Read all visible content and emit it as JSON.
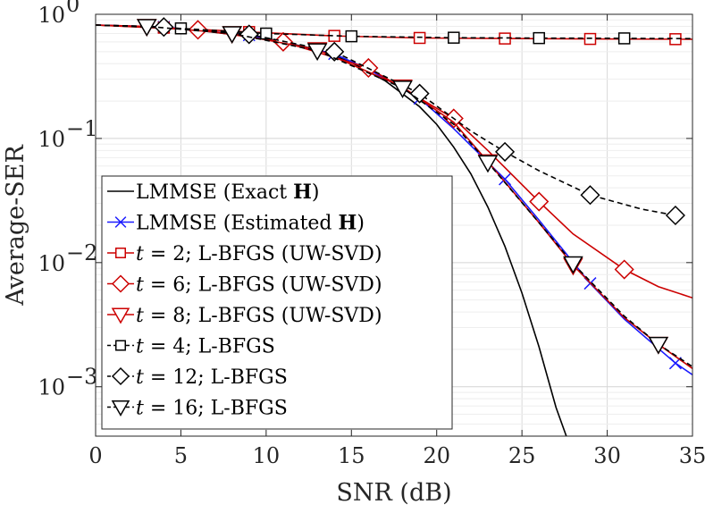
{
  "chart_data": {
    "type": "line",
    "title": "",
    "xlabel": "SNR (dB)",
    "ylabel": "Average-SER",
    "xlim": [
      0,
      35
    ],
    "ylim": [
      0.0004,
      1
    ],
    "yscale": "log",
    "grid": true,
    "legend_position": "bottom-left",
    "x_ticks": [
      0,
      5,
      10,
      15,
      20,
      25,
      30,
      35
    ],
    "y_ticks": [
      {
        "value": 1,
        "base": "10",
        "exp": "0"
      },
      {
        "value": 0.1,
        "base": "10",
        "exp": "−1"
      },
      {
        "value": 0.01,
        "base": "10",
        "exp": "−2"
      },
      {
        "value": 0.001,
        "base": "10",
        "exp": "−3"
      }
    ],
    "series": [
      {
        "name": "LMMSE (Exact H)",
        "legend_parts": [
          "LMMSE (Exact ",
          "H",
          ")"
        ],
        "color": "#000000",
        "dash": "",
        "marker": "none",
        "x": [
          0,
          5,
          10,
          13,
          15,
          17,
          19,
          20,
          21,
          22,
          23,
          24,
          25,
          26,
          27,
          27.6
        ],
        "y": [
          0.82,
          0.77,
          0.64,
          0.52,
          0.41,
          0.29,
          0.18,
          0.13,
          0.085,
          0.052,
          0.028,
          0.0135,
          0.0057,
          0.0021,
          0.00068,
          0.0004
        ],
        "marker_x": []
      },
      {
        "name": "LMMSE (Estimated H)",
        "legend_parts": [
          "LMMSE (Estimated ",
          "H",
          ")"
        ],
        "color": "#1a1aff",
        "dash": "",
        "marker": "x",
        "x": [
          0,
          4,
          9,
          14,
          16,
          19,
          21,
          24,
          26,
          29,
          31,
          34,
          35
        ],
        "y": [
          0.82,
          0.79,
          0.68,
          0.48,
          0.36,
          0.21,
          0.12,
          0.047,
          0.022,
          0.0068,
          0.0035,
          0.00155,
          0.00125
        ],
        "marker_x": [
          4,
          9,
          14,
          19,
          24,
          29,
          34
        ]
      },
      {
        "name": "t = 2; L-BFGS (UW-SVD)",
        "legend_parts": [
          "t",
          " = 2; L-BFGS (UW-SVD)"
        ],
        "color": "#cc0000",
        "dash": "",
        "marker": "square",
        "x": [
          0,
          4,
          9,
          14,
          19,
          24,
          29,
          35
        ],
        "y": [
          0.82,
          0.78,
          0.72,
          0.67,
          0.645,
          0.638,
          0.633,
          0.63
        ],
        "marker_x": [
          4,
          9,
          14,
          19,
          24,
          29,
          34
        ]
      },
      {
        "name": "t = 6; L-BFGS (UW-SVD)",
        "legend_parts": [
          "t",
          " = 6; L-BFGS (UW-SVD)"
        ],
        "color": "#cc0000",
        "dash": "",
        "marker": "diamond",
        "x": [
          0,
          6,
          11,
          16,
          21,
          23,
          26,
          28,
          31,
          33,
          35
        ],
        "y": [
          0.82,
          0.75,
          0.6,
          0.37,
          0.145,
          0.08,
          0.031,
          0.017,
          0.0088,
          0.0064,
          0.0052
        ],
        "marker_x": [
          6,
          11,
          16,
          21,
          26,
          31
        ]
      },
      {
        "name": "t = 8; L-BFGS (UW-SVD)",
        "legend_parts": [
          "t",
          " = 8; L-BFGS (UW-SVD)"
        ],
        "color": "#cc0000",
        "dash": "",
        "marker": "triangle",
        "x": [
          0,
          3,
          8,
          13,
          18,
          21,
          23,
          26,
          28,
          31,
          33,
          35
        ],
        "y": [
          0.82,
          0.8,
          0.7,
          0.52,
          0.26,
          0.135,
          0.065,
          0.021,
          0.0095,
          0.0036,
          0.0022,
          0.0014
        ],
        "marker_x": [
          3,
          8,
          13,
          18,
          23,
          28,
          33
        ]
      },
      {
        "name": "t = 4; L-BFGS",
        "legend_parts": [
          "t",
          " = 4; L-BFGS"
        ],
        "color": "#000000",
        "dash": "6,4",
        "marker": "square",
        "x": [
          0,
          5,
          10,
          15,
          21,
          26,
          31,
          35
        ],
        "y": [
          0.82,
          0.77,
          0.7,
          0.665,
          0.648,
          0.643,
          0.64,
          0.637
        ],
        "marker_x": [
          5,
          10,
          15,
          21,
          26,
          31
        ]
      },
      {
        "name": "t = 12; L-BFGS",
        "legend_parts": [
          "t",
          " = 12; L-BFGS"
        ],
        "color": "#000000",
        "dash": "6,4",
        "marker": "diamond",
        "x": [
          0,
          4,
          9,
          14,
          19,
          22,
          24,
          26,
          29,
          32,
          34
        ],
        "y": [
          0.82,
          0.79,
          0.69,
          0.5,
          0.23,
          0.115,
          0.078,
          0.055,
          0.035,
          0.027,
          0.024
        ],
        "marker_x": [
          4,
          9,
          14,
          19,
          24,
          29,
          34
        ]
      },
      {
        "name": "t = 16; L-BFGS",
        "legend_parts": [
          "t",
          " = 16; L-BFGS"
        ],
        "color": "#000000",
        "dash": "6,4",
        "marker": "triangle",
        "x": [
          0,
          3,
          8,
          13,
          18,
          21,
          23,
          26,
          28,
          31,
          33,
          35
        ],
        "y": [
          0.82,
          0.8,
          0.7,
          0.51,
          0.255,
          0.13,
          0.064,
          0.021,
          0.0098,
          0.0037,
          0.0022,
          0.00145
        ],
        "marker_x": [
          3,
          8,
          13,
          18,
          23,
          28,
          33
        ]
      }
    ]
  }
}
